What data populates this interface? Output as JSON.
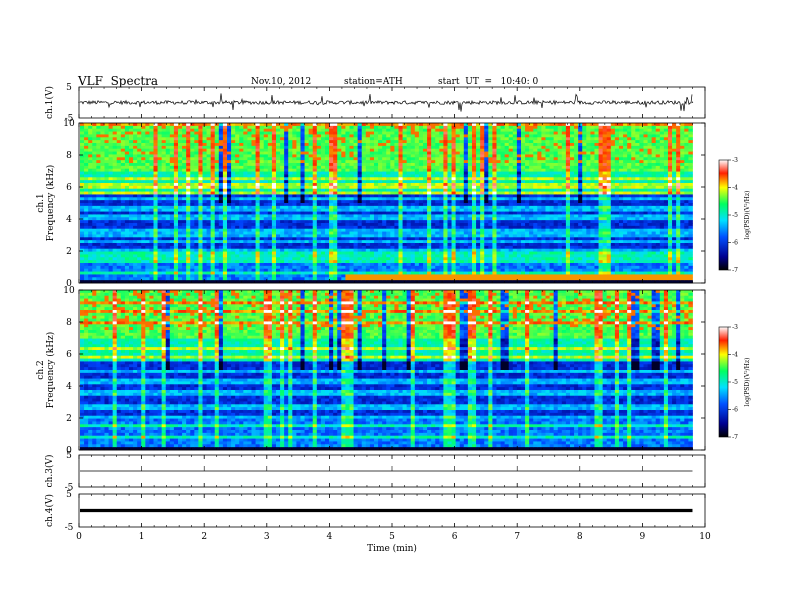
{
  "header": {
    "title": "VLF  Spectra",
    "date": "Nov.10, 2012",
    "station": "station=ATH",
    "start_ut": "start  UT  =   10:40: 0"
  },
  "colors": {
    "spectrum_low": "#000080",
    "spectrum_mid": "#00ff80",
    "spectrum_high": "#ff0000"
  },
  "chart_data": [
    {
      "type": "line",
      "panel": "ch.1(V)",
      "ylabel": "ch.1(V)",
      "ylim": [
        -5,
        5
      ],
      "yticks": [
        "5",
        "-5"
      ],
      "x": [
        0,
        1,
        2,
        3,
        4,
        5,
        6,
        7,
        8,
        9,
        9.8
      ],
      "values": [
        0.1,
        -0.1,
        0.2,
        0.0,
        -0.1,
        0.1,
        0.0,
        -0.2,
        0.1,
        0.0,
        0.1
      ]
    },
    {
      "type": "heatmap",
      "panel": "ch.1",
      "ylabel": "Frequency (kHz)",
      "channel_label": "ch.1",
      "ylim": [
        0,
        10
      ],
      "yticks": [
        "0",
        "2",
        "4",
        "6",
        "8",
        "10"
      ],
      "colorbar": {
        "label": "log(PSD)(V²/Hz)",
        "ticks": [
          "-3",
          "-4",
          "-5",
          "-6",
          "-7"
        ],
        "range": [
          -7,
          -3
        ]
      },
      "band_change_time": 4.2
    },
    {
      "type": "heatmap",
      "panel": "ch.2",
      "ylabel": "Frequency (kHz)",
      "channel_label": "ch.2",
      "ylim": [
        0,
        10
      ],
      "yticks": [
        "0",
        "2",
        "4",
        "6",
        "8",
        "10"
      ],
      "colorbar": {
        "label": "log(PSD)(V²/Hz)",
        "ticks": [
          "-3",
          "-4",
          "-5",
          "-6",
          "-7"
        ],
        "range": [
          -7,
          -3
        ]
      }
    },
    {
      "type": "line",
      "panel": "ch.3(V)",
      "ylabel": "ch.3(V)",
      "ylim": [
        -5,
        5
      ],
      "yticks": [
        "5",
        "-5"
      ],
      "x": [
        0,
        9.8
      ],
      "values": [
        0,
        0
      ]
    },
    {
      "type": "line",
      "panel": "ch.4(V)",
      "ylabel": "ch.4(V)",
      "ylim": [
        -5,
        5
      ],
      "yticks": [
        "5",
        "-5"
      ],
      "x": [
        0,
        9.8
      ],
      "values": [
        0,
        0
      ]
    }
  ],
  "xaxis": {
    "label": "Time  (min)",
    "ticks": [
      "0",
      "1",
      "2",
      "3",
      "4",
      "5",
      "6",
      "7",
      "8",
      "9",
      "10"
    ],
    "range": [
      0,
      10
    ],
    "data_end": 9.8
  }
}
